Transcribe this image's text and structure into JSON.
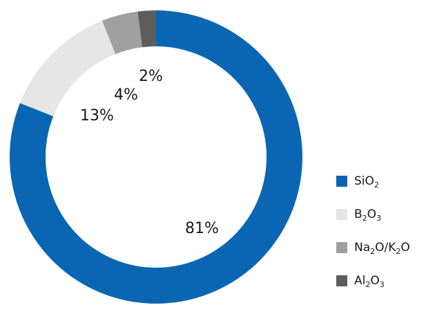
{
  "chart_data": {
    "type": "pie",
    "categories": [
      "SiO2",
      "B2O3",
      "Na2O/K2O",
      "Al2O3"
    ],
    "values": [
      81,
      13,
      4,
      2
    ],
    "unit": "%",
    "value_labels": [
      "81%",
      "13%",
      "4%",
      "2%"
    ],
    "colors": [
      "#0a66b2",
      "#e6e6e6",
      "#a0a0a0",
      "#5d5d5d"
    ],
    "legend_position": "right",
    "style": "donut",
    "legend": [
      {
        "parts": [
          {
            "t": "SiO",
            "sub": false
          },
          {
            "t": "2",
            "sub": true
          }
        ]
      },
      {
        "parts": [
          {
            "t": "B",
            "sub": false
          },
          {
            "t": "2",
            "sub": true
          },
          {
            "t": "O",
            "sub": false
          },
          {
            "t": "3",
            "sub": true
          }
        ]
      },
      {
        "parts": [
          {
            "t": "Na",
            "sub": false
          },
          {
            "t": "2",
            "sub": true
          },
          {
            "t": "O/K",
            "sub": false
          },
          {
            "t": "2",
            "sub": true
          },
          {
            "t": "O",
            "sub": false
          }
        ]
      },
      {
        "parts": [
          {
            "t": "Al",
            "sub": false
          },
          {
            "t": "2",
            "sub": true
          },
          {
            "t": "O",
            "sub": false
          },
          {
            "t": "3",
            "sub": true
          }
        ]
      }
    ]
  }
}
